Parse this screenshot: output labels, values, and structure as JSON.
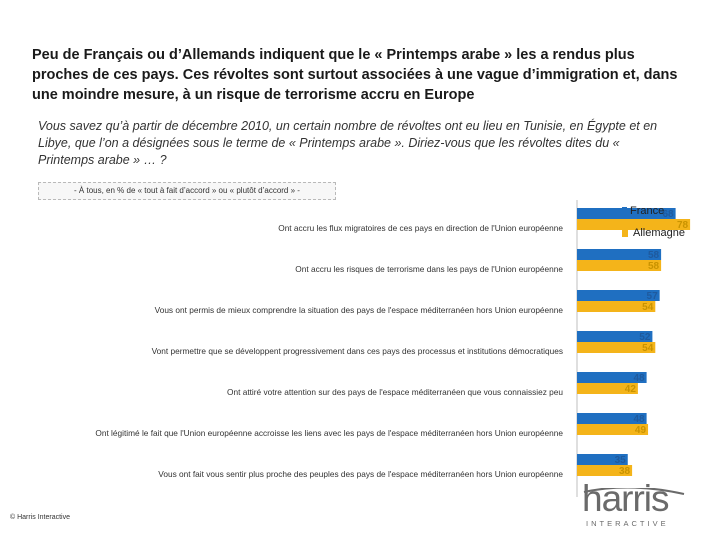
{
  "title": {
    "part1": "Peu de Français ou d’Allemands indiquent que le « Printemps arabe » les a rendus plus proches de ces pays.",
    "part2": "Ces révoltes sont surtout associées à une vague d’immigration et, dans une moindre mesure, à un risque de terrorisme accru en Europe"
  },
  "question": "Vous savez qu’à partir de décembre 2010, un certain nombre de révoltes ont eu lieu en Tunisie, en Égypte et en Libye, que l’on a désignées sous le terme de « Printemps arabe ». Diriez-vous que les révoltes dites du « Printemps arabe » … ?",
  "subheader": "- À tous, en % de « tout à fait d’accord » ou « plutôt d’accord » -",
  "footer": "© Harris Interactive",
  "logo": {
    "word": "harris",
    "sub": "INTERACTIVE"
  },
  "colors": {
    "france": "#1f6fc1",
    "allemagne": "#f4b41a",
    "allemagne_label": "#c99300",
    "france_label": "#1f5a9e"
  },
  "chart_data": {
    "type": "bar",
    "orientation": "horizontal",
    "categories": [
      "Ont accru les flux migratoires de ces pays en direction de l'Union européenne",
      "Ont accru les risques de terrorisme dans les pays de l'Union européenne",
      "Vous ont permis de mieux comprendre la situation des pays de l'espace méditerranéen hors Union européenne",
      "Vont permettre que se développent progressivement dans ces pays des processus et institutions démocratiques",
      "Ont attiré votre attention sur des pays de l'espace méditerranéen que vous connaissiez peu",
      "Ont légitimé le fait que l'Union européenne accroisse les liens avec les pays de l'espace méditerranéen hors Union européenne",
      "Vous ont fait vous sentir plus proche des peuples des pays de l'espace méditerranéen hors Union européenne"
    ],
    "series": [
      {
        "name": "France",
        "values": [
          68,
          58,
          57,
          52,
          48,
          48,
          35
        ]
      },
      {
        "name": "Allemagne",
        "values": [
          78,
          58,
          54,
          54,
          42,
          49,
          38
        ]
      }
    ],
    "unit": "%",
    "legend": "top-right"
  }
}
